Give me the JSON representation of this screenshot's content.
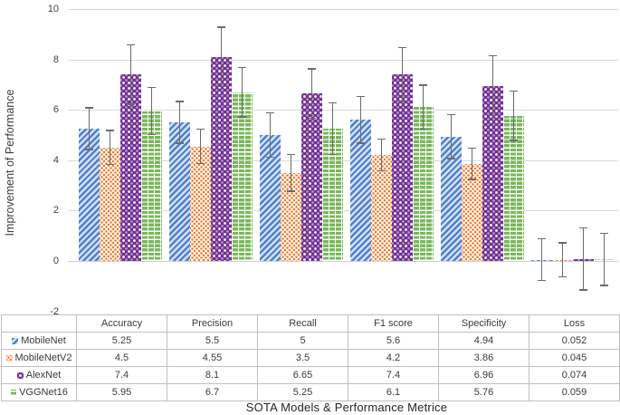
{
  "chart_data": {
    "type": "bar",
    "title": "",
    "xlabel": "SOTA Models & Performance Metrice",
    "ylabel": "Improvement of Performance",
    "ylim": [
      -2,
      10
    ],
    "yticks": [
      10,
      8,
      6,
      4,
      2,
      0,
      -2
    ],
    "grid": true,
    "legend_position": "data-table-left-column",
    "categories": [
      "Accuracy",
      "Precision",
      "Recall",
      "F1 score",
      "Specificity",
      "Loss"
    ],
    "series": [
      {
        "name": "MobileNet",
        "color": "#4472C4",
        "pattern": "blue-diagonal-stripes",
        "values": [
          5.25,
          5.5,
          5,
          5.6,
          4.94,
          0.052
        ],
        "errors": [
          0.85,
          0.85,
          0.9,
          0.95,
          0.9,
          0.85
        ]
      },
      {
        "name": "MobileNetV2",
        "color": "#ED7D31",
        "pattern": "orange-dot-lattice",
        "values": [
          4.5,
          4.55,
          3.5,
          4.2,
          3.86,
          0.045
        ],
        "errors": [
          0.7,
          0.7,
          0.75,
          0.65,
          0.65,
          0.7
        ]
      },
      {
        "name": "AlexNet",
        "color": "#7030A0",
        "pattern": "purple-spheres",
        "values": [
          7.4,
          8.1,
          6.65,
          7.4,
          6.96,
          0.074
        ],
        "errors": [
          1.2,
          1.2,
          1.0,
          1.1,
          1.2,
          1.25
        ]
      },
      {
        "name": "VGGNet16",
        "color": "#70AD47",
        "pattern": "green-bricks",
        "values": [
          5.95,
          6.7,
          5.25,
          6.1,
          5.76,
          0.059
        ],
        "errors": [
          0.95,
          1.0,
          1.05,
          0.9,
          1.0,
          1.05
        ]
      }
    ],
    "error_bar_color": "#6b6b6b",
    "gridline_color": "#d9d9d9",
    "has_data_table": true
  }
}
